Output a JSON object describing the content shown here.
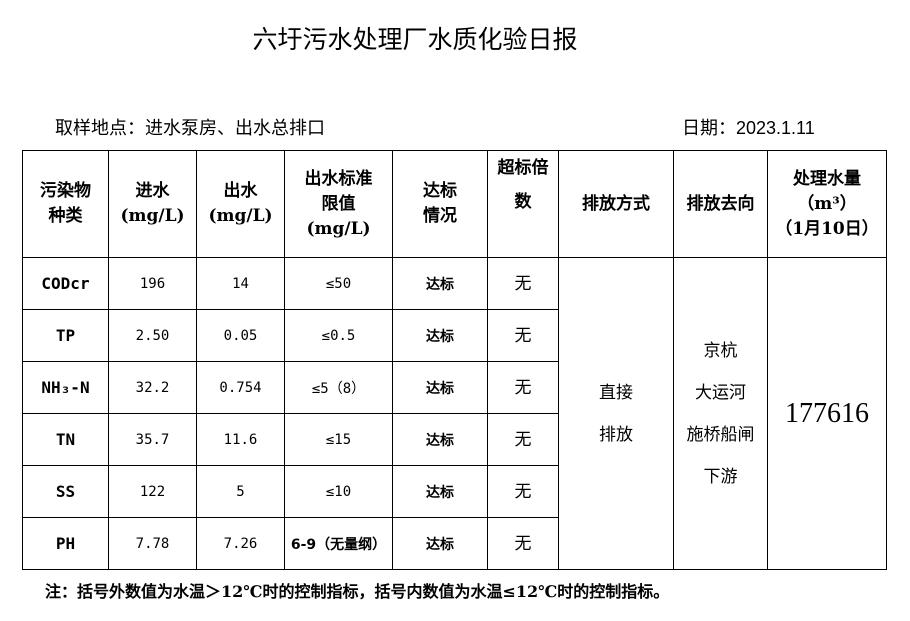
{
  "title": "六圩污水处理厂水质化验日报",
  "location": "取样地点：进水泵房、出水总排口",
  "date": "日期：2023.1.11",
  "headers": {
    "pollutant": [
      "污染物",
      "种类"
    ],
    "inflow": [
      "进水",
      "(mg/L)"
    ],
    "outflow": [
      "出水",
      "(mg/L)"
    ],
    "limit": [
      "出水标准",
      "限值",
      "(mg/L)"
    ],
    "status": [
      "达标",
      "情况"
    ],
    "exceed": [
      "超标倍",
      "数"
    ],
    "discharge_method": "排放方式",
    "discharge_dest": "排放去向",
    "volume": [
      "处理水量",
      "（m³）",
      "（1月10日）"
    ]
  },
  "rows": [
    {
      "name": "CODcr",
      "in": "196",
      "out": "14",
      "limit": "≤50",
      "status": "达标",
      "exceed": "无"
    },
    {
      "name": "TP",
      "in": "2.50",
      "out": "0.05",
      "limit": "≤0.5",
      "status": "达标",
      "exceed": "无"
    },
    {
      "name": "NH₃-N",
      "in": "32.2",
      "out": "0.754",
      "limit": "≤5（8）",
      "status": "达标",
      "exceed": "无"
    },
    {
      "name": "TN",
      "in": "35.7",
      "out": "11.6",
      "limit": "≤15",
      "status": "达标",
      "exceed": "无"
    },
    {
      "name": "SS",
      "in": "122",
      "out": "5",
      "limit": "≤10",
      "status": "达标",
      "exceed": "无"
    },
    {
      "name": "PH",
      "in": "7.78",
      "out": "7.26",
      "limit": "6-9（无量纲）",
      "status": "达标",
      "exceed": "无"
    }
  ],
  "discharge_method": [
    "直接",
    "排放"
  ],
  "discharge_dest": [
    "京杭",
    "大运河",
    "施桥船闸",
    "下游"
  ],
  "volume": "177616",
  "note": "注：括号外数值为水温＞12℃时的控制指标，括号内数值为水温≤12℃时的控制指标。"
}
